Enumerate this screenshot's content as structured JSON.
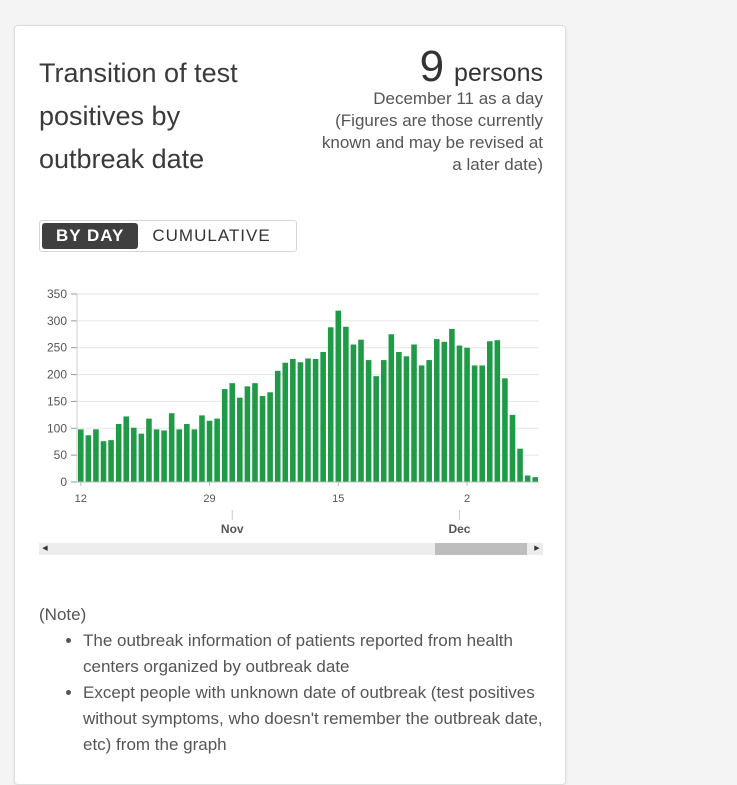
{
  "card": {
    "title": "Transition of test positives by outbreak date",
    "number": "9",
    "unit": "persons",
    "date_line": "December 11 as a day",
    "caveat_lines": [
      "(Figures are those currently",
      "known and may be revised at",
      "a later date)"
    ],
    "toggle": {
      "by_day": "BY DAY",
      "cumulative": "CUMULATIVE",
      "selected": "BY DAY"
    },
    "note_title": "(Note)",
    "notes": [
      "The outbreak information of patients reported from health centers organized by outbreak date",
      "Except people with unknown date of outbreak (test positives without symptoms, who doesn't remember the outbreak date, etc) from the graph"
    ]
  },
  "colors": {
    "bar": "#1f9a47",
    "grid": "#e6e6e6",
    "text": "#333333"
  },
  "chart_data": {
    "type": "bar",
    "x": [
      "Oct 12",
      "Oct 13",
      "Oct 14",
      "Oct 15",
      "Oct 16",
      "Oct 17",
      "Oct 18",
      "Oct 19",
      "Oct 20",
      "Oct 21",
      "Oct 22",
      "Oct 23",
      "Oct 24",
      "Oct 25",
      "Oct 26",
      "Oct 27",
      "Oct 28",
      "Oct 29",
      "Oct 30",
      "Oct 31",
      "Nov 1",
      "Nov 2",
      "Nov 3",
      "Nov 4",
      "Nov 5",
      "Nov 6",
      "Nov 7",
      "Nov 8",
      "Nov 9",
      "Nov 10",
      "Nov 11",
      "Nov 12",
      "Nov 13",
      "Nov 14",
      "Nov 15",
      "Nov 16",
      "Nov 17",
      "Nov 18",
      "Nov 19",
      "Nov 20",
      "Nov 21",
      "Nov 22",
      "Nov 23",
      "Nov 24",
      "Nov 25",
      "Nov 26",
      "Nov 27",
      "Nov 28",
      "Nov 29",
      "Nov 30",
      "Dec 1",
      "Dec 2",
      "Dec 3",
      "Dec 4",
      "Dec 5",
      "Dec 6",
      "Dec 7",
      "Dec 8",
      "Dec 9",
      "Dec 10",
      "Dec 11"
    ],
    "values": [
      98,
      87,
      98,
      76,
      78,
      108,
      122,
      101,
      90,
      118,
      98,
      96,
      128,
      98,
      108,
      98,
      124,
      114,
      118,
      173,
      184,
      157,
      178,
      184,
      160,
      167,
      207,
      222,
      229,
      223,
      230,
      229,
      242,
      288,
      319,
      289,
      256,
      265,
      227,
      197,
      227,
      275,
      242,
      234,
      256,
      217,
      227,
      266,
      261,
      285,
      254,
      250,
      217,
      217,
      262,
      264,
      193,
      125,
      62,
      12,
      9
    ],
    "ylim": [
      0,
      350
    ],
    "yticks": [
      0,
      50,
      100,
      150,
      200,
      250,
      300,
      350
    ],
    "xticks": [
      {
        "date": "Oct 12",
        "label": "12"
      },
      {
        "date": "Oct 29",
        "label": "29"
      },
      {
        "date": "Nov 15",
        "label": "15"
      },
      {
        "date": "Dec 2",
        "label": "2"
      }
    ],
    "month_labels": [
      {
        "date": "Nov 1",
        "label": "Nov"
      },
      {
        "date": "Dec 1",
        "label": "Dec"
      }
    ],
    "grid": true,
    "title": "",
    "xlabel": "",
    "ylabel": ""
  }
}
